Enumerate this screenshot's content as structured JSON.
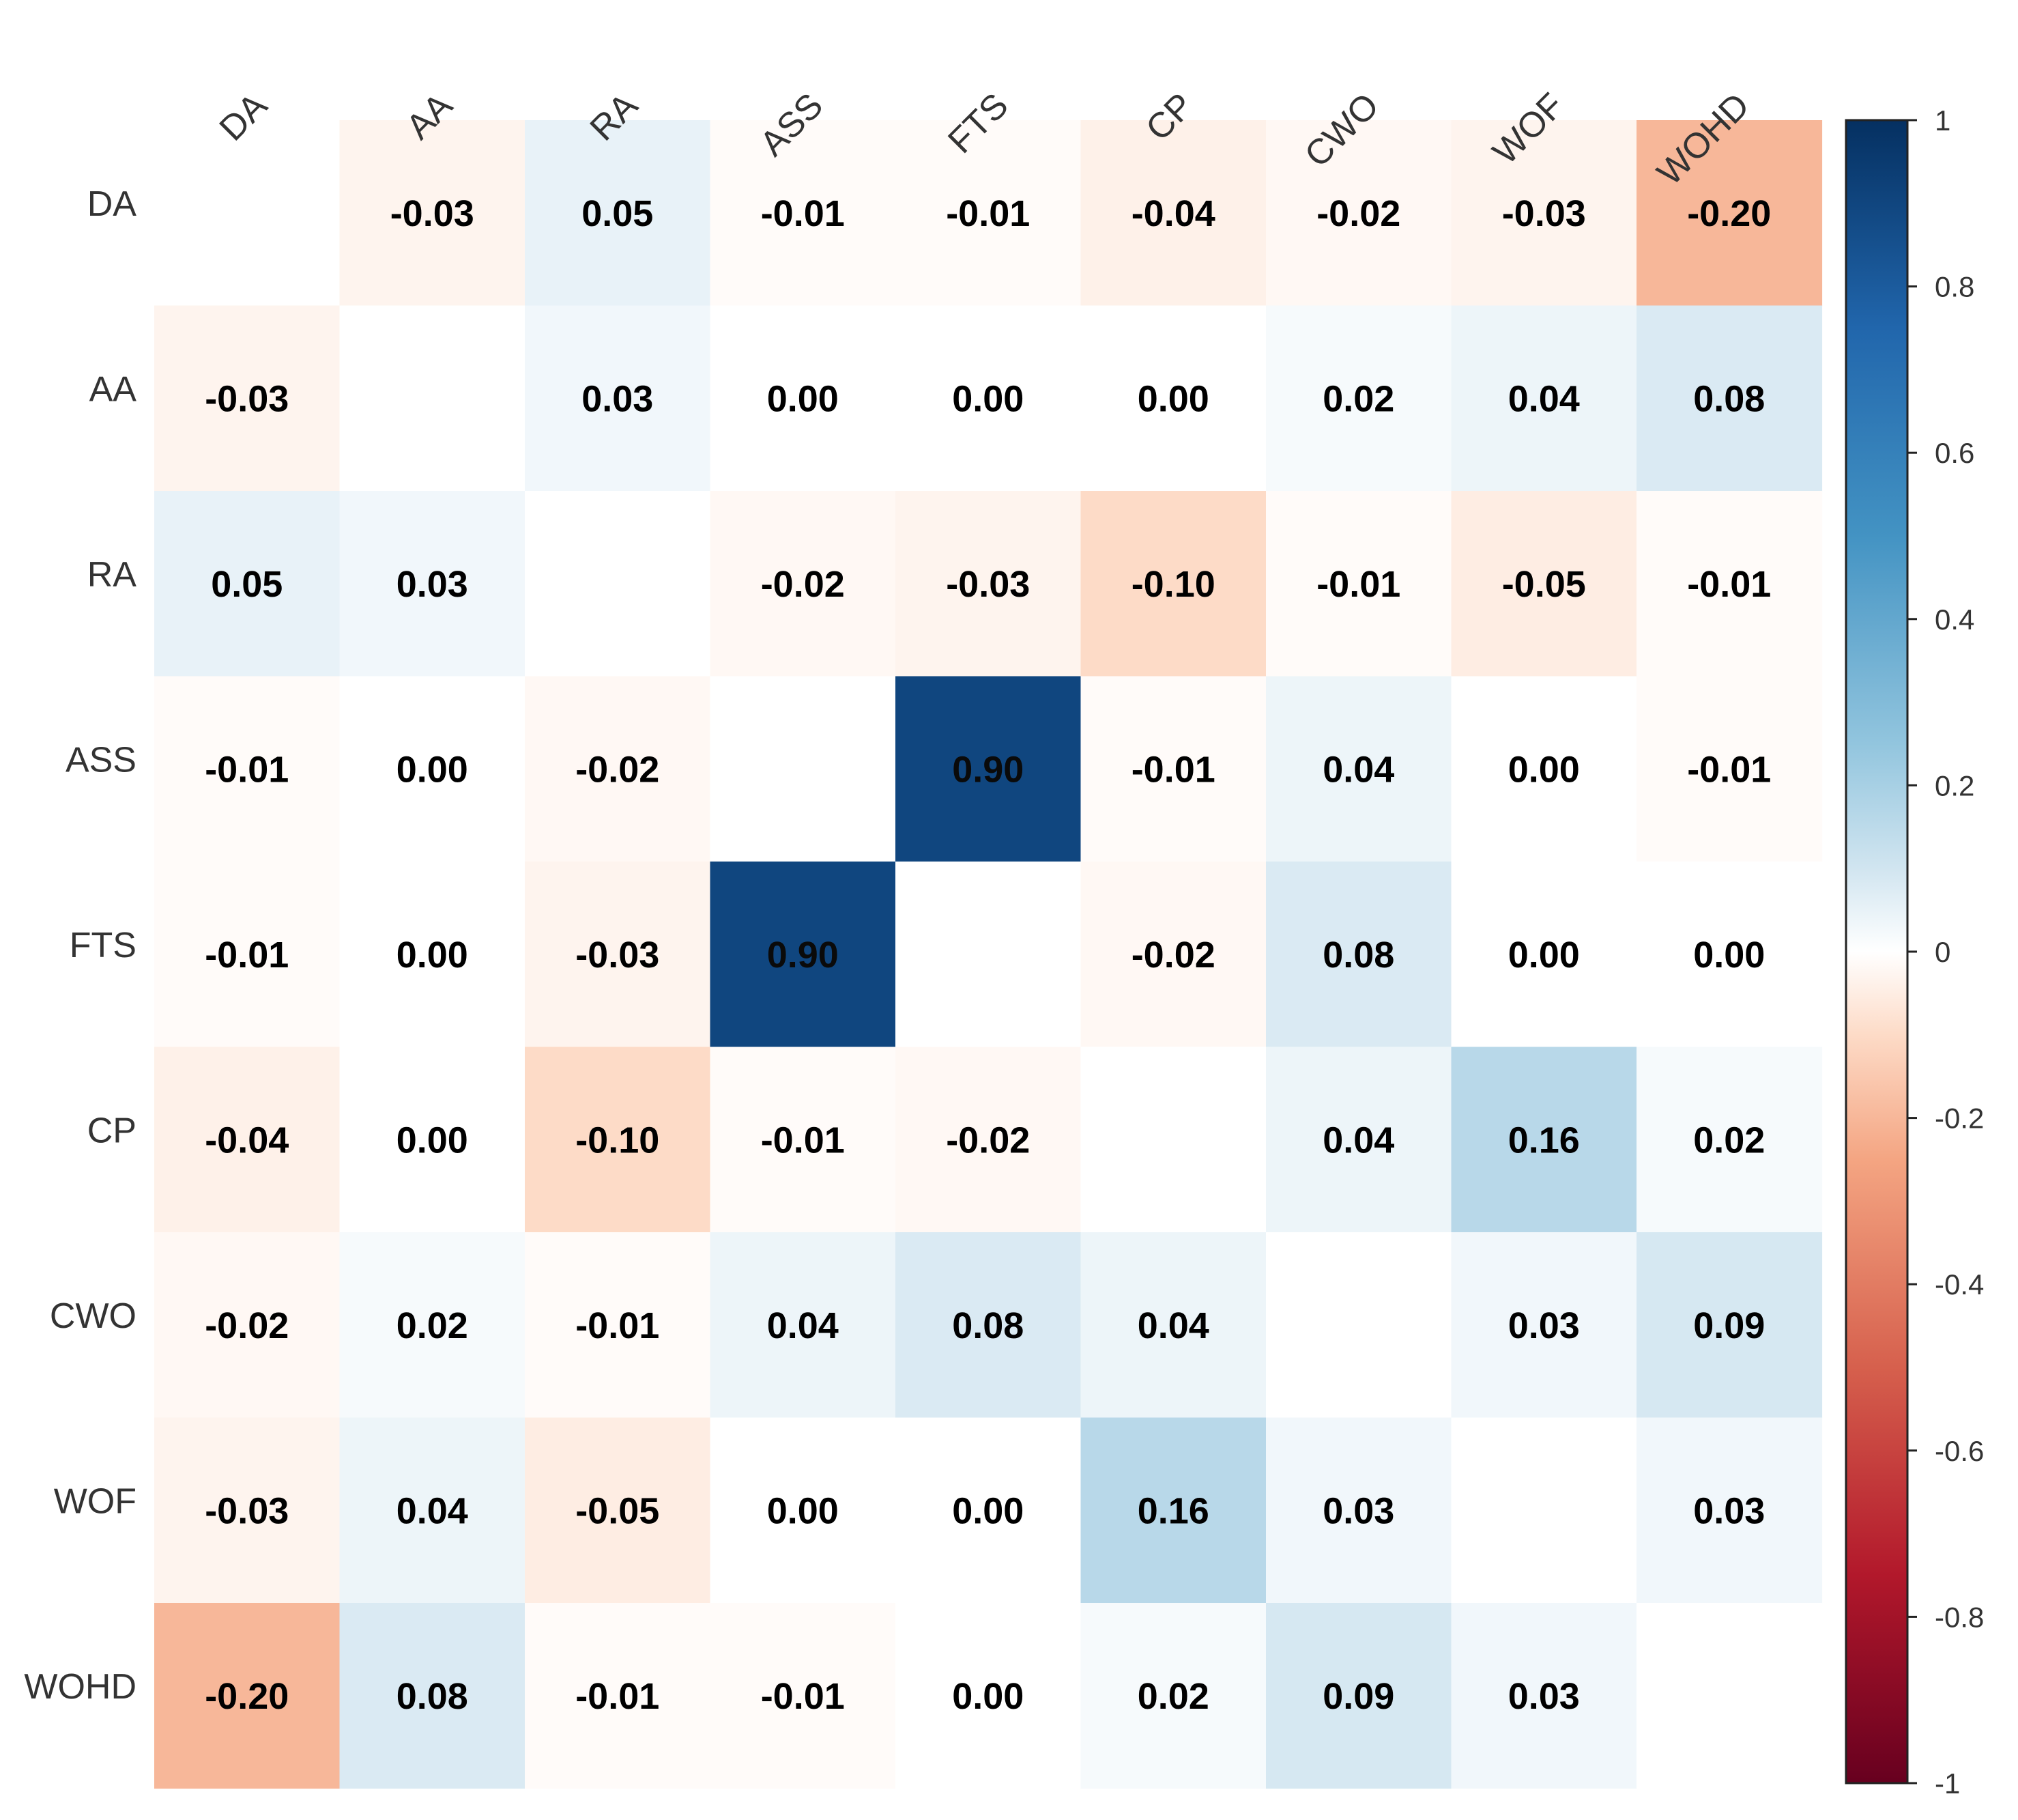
{
  "chart_data": {
    "type": "heatmap",
    "title": "",
    "variables": [
      "DA",
      "AA",
      "RA",
      "ASS",
      "FTS",
      "CP",
      "CWO",
      "WOF",
      "WOHD"
    ],
    "matrix": [
      [
        null,
        -0.03,
        0.05,
        -0.01,
        -0.01,
        -0.04,
        -0.02,
        -0.03,
        -0.2
      ],
      [
        -0.03,
        null,
        0.03,
        0.0,
        0.0,
        0.0,
        0.02,
        0.04,
        0.08
      ],
      [
        0.05,
        0.03,
        null,
        -0.02,
        -0.03,
        -0.1,
        -0.01,
        -0.05,
        -0.01
      ],
      [
        -0.01,
        0.0,
        -0.02,
        null,
        0.9,
        -0.01,
        0.04,
        0.0,
        -0.01
      ],
      [
        -0.01,
        0.0,
        -0.03,
        0.9,
        null,
        -0.02,
        0.08,
        0.0,
        0.0
      ],
      [
        -0.04,
        0.0,
        -0.1,
        -0.01,
        -0.02,
        null,
        0.04,
        0.16,
        0.02
      ],
      [
        -0.02,
        0.02,
        -0.01,
        0.04,
        0.08,
        0.04,
        null,
        0.03,
        0.09
      ],
      [
        -0.03,
        0.04,
        -0.05,
        0.0,
        0.0,
        0.16,
        0.03,
        null,
        0.03
      ],
      [
        -0.2,
        0.08,
        -0.01,
        -0.01,
        0.0,
        0.02,
        0.09,
        0.03,
        null
      ]
    ],
    "labels": [
      [
        "",
        "-0.03",
        "0.05",
        "-0.01",
        "-0.01",
        "-0.04",
        "-0.02",
        "-0.03",
        "-0.20"
      ],
      [
        "-0.03",
        "",
        "0.03",
        "0.00",
        "0.00",
        "0.00",
        "0.02",
        "0.04",
        "0.08"
      ],
      [
        "0.05",
        "0.03",
        "",
        "-0.02",
        "-0.03",
        "-0.10",
        "-0.01",
        "-0.05",
        "-0.01"
      ],
      [
        "-0.01",
        "0.00",
        "-0.02",
        "",
        "0.90",
        "-0.01",
        "0.04",
        "0.00",
        "-0.01"
      ],
      [
        "-0.01",
        "0.00",
        "-0.03",
        "0.90",
        "",
        "-0.02",
        "0.08",
        "0.00",
        "0.00"
      ],
      [
        "-0.04",
        "0.00",
        "-0.10",
        "-0.01",
        "-0.02",
        "",
        "0.04",
        "0.16",
        "0.02"
      ],
      [
        "-0.02",
        "0.02",
        "-0.01",
        "0.04",
        "0.08",
        "0.04",
        "",
        "0.03",
        "0.09"
      ],
      [
        "-0.03",
        "0.04",
        "-0.05",
        "0.00",
        "0.00",
        "0.16",
        "0.03",
        "",
        "0.03"
      ],
      [
        "-0.20",
        "0.08",
        "-0.01",
        "-0.01",
        "0.00",
        "0.02",
        "0.09",
        "0.03",
        ""
      ]
    ],
    "color_scale": {
      "min": -1,
      "max": 1,
      "stops": [
        {
          "value": -1.0,
          "color": "#67001f"
        },
        {
          "value": -0.75,
          "color": "#b2182b"
        },
        {
          "value": -0.5,
          "color": "#d6604d"
        },
        {
          "value": -0.25,
          "color": "#f4a582"
        },
        {
          "value": -0.1,
          "color": "#fddbc7"
        },
        {
          "value": 0.0,
          "color": "#ffffff"
        },
        {
          "value": 0.1,
          "color": "#d1e5f0"
        },
        {
          "value": 0.25,
          "color": "#92c5de"
        },
        {
          "value": 0.5,
          "color": "#4393c3"
        },
        {
          "value": 0.75,
          "color": "#2166ac"
        },
        {
          "value": 1.0,
          "color": "#053061"
        }
      ],
      "ticks": [
        1,
        0.8,
        0.6,
        0.4,
        0.2,
        0,
        -0.2,
        -0.4,
        -0.6,
        -0.8,
        -1
      ],
      "tick_labels": [
        "1",
        "0.8",
        "0.6",
        "0.4",
        "0.2",
        "0",
        "-0.2",
        "-0.4",
        "-0.6",
        "-0.8",
        "-1"
      ]
    },
    "legend_placement": "right",
    "column_labels_rotation": "45deg",
    "grid": false
  }
}
